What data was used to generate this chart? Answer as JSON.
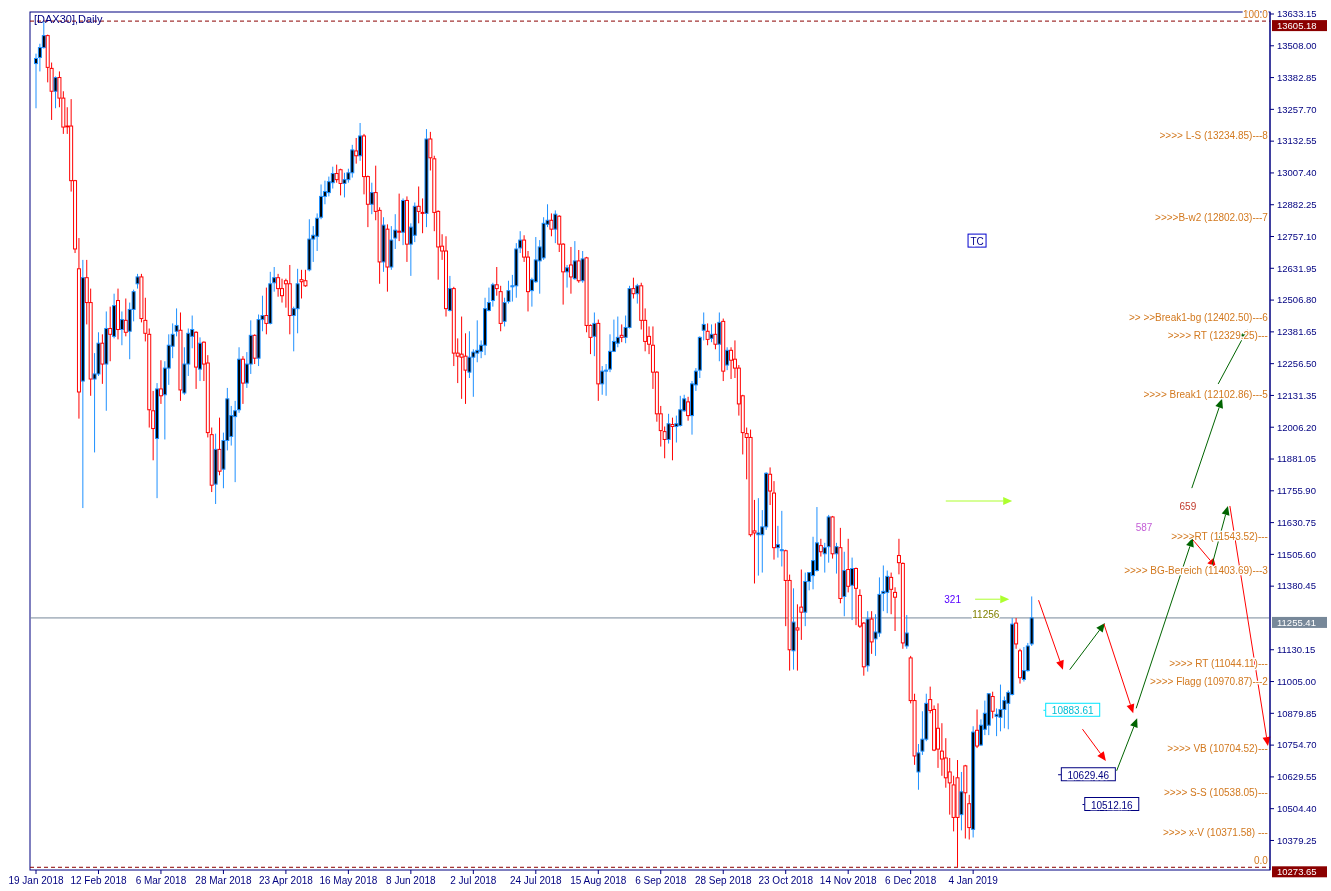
{
  "chart_data": {
    "type": "candlestick",
    "title": "[DAX30],Daily",
    "categories": [
      "19 Jan 2018",
      null,
      null,
      null,
      null,
      null,
      null,
      null,
      null,
      null,
      null,
      null,
      null,
      null,
      null,
      null,
      "12 Feb 2018",
      null,
      null,
      null,
      null,
      null,
      null,
      null,
      null,
      null,
      null,
      null,
      null,
      null,
      null,
      null,
      "6 Mar 2018",
      null,
      null,
      null,
      null,
      null,
      null,
      null,
      null,
      null,
      null,
      null,
      null,
      null,
      null,
      null,
      "28 Mar 2018",
      null,
      null,
      null,
      null,
      null,
      null,
      null,
      null,
      null,
      null,
      null,
      null,
      null,
      null,
      null,
      "23 Apr 2018",
      null,
      null,
      null,
      null,
      null,
      null,
      null,
      null,
      null,
      null,
      null,
      null,
      null,
      null,
      null,
      "16 May 2018",
      null,
      null,
      null,
      null,
      null,
      null,
      null,
      null,
      null,
      null,
      null,
      null,
      null,
      null,
      null,
      "8 Jun 2018",
      null,
      null,
      null,
      null,
      null,
      null,
      null,
      null,
      null,
      null,
      null,
      null,
      null,
      null,
      null,
      "2 Jul 2018",
      null,
      null,
      null,
      null,
      null,
      null,
      null,
      null,
      null,
      null,
      null,
      null,
      null,
      null,
      null,
      "24 Jul 2018",
      null,
      null,
      null,
      null,
      null,
      null,
      null,
      null,
      null,
      null,
      null,
      null,
      null,
      null,
      null,
      "15 Aug 2018",
      null,
      null,
      null,
      null,
      null,
      null,
      null,
      null,
      null,
      null,
      null,
      null,
      null,
      null,
      null,
      "6 Sep 2018",
      null,
      null,
      null,
      null,
      null,
      null,
      null,
      null,
      null,
      null,
      null,
      null,
      null,
      null,
      null,
      "28 Sep 2018",
      null,
      null,
      null,
      null,
      null,
      null,
      null,
      null,
      null,
      null,
      null,
      null,
      null,
      null,
      null,
      "23 Oct 2018",
      null,
      null,
      null,
      null,
      null,
      null,
      null,
      null,
      null,
      null,
      null,
      null,
      null,
      null,
      null,
      "14 Nov 2018",
      null,
      null,
      null,
      null,
      null,
      null,
      null,
      null,
      null,
      null,
      null,
      null,
      null,
      null,
      null,
      "6 Dec 2018",
      null,
      null,
      null,
      null,
      null,
      null,
      null,
      null,
      null,
      null,
      null,
      null,
      null,
      null,
      null,
      "4 Jan 2019",
      null,
      null,
      null,
      null,
      null,
      null,
      null,
      null,
      null,
      null,
      null,
      null,
      null,
      null,
      null,
      null,
      null,
      null,
      null,
      null,
      null,
      null,
      null,
      null,
      null,
      null,
      null,
      null,
      null,
      null,
      null,
      null,
      null,
      null,
      null,
      null,
      null,
      null,
      null,
      null,
      null,
      null,
      null,
      null,
      null,
      null,
      null,
      null,
      null,
      null,
      null,
      null,
      null,
      null,
      null,
      null,
      null,
      null,
      null,
      null,
      null,
      null,
      null,
      null,
      null,
      null,
      null,
      null,
      null,
      null,
      null,
      null,
      null,
      null,
      null
    ],
    "ohlc": [
      [
        13438,
        13477,
        13262,
        13458
      ],
      [
        13462,
        13516,
        13407,
        13501
      ],
      [
        13501,
        13605.18,
        13497,
        13548
      ],
      [
        13548,
        13552,
        13364,
        13423
      ],
      [
        13419,
        13442,
        13216,
        13329
      ],
      [
        13329,
        13387,
        13262,
        13383
      ],
      [
        13383,
        13407,
        13266,
        13302
      ],
      [
        13302,
        13329,
        13161,
        13188
      ],
      [
        13192,
        13266,
        13161,
        13190
      ],
      [
        13192,
        13298,
        12934,
        12977
      ],
      [
        12977,
        12980,
        12692,
        12708
      ],
      [
        12630,
        12751,
        12040,
        12145
      ],
      [
        12188,
        12665,
        11688,
        12595
      ],
      [
        12595,
        12665,
        12411,
        12497
      ],
      [
        12497,
        12552,
        12130,
        12196
      ],
      [
        12196,
        12298,
        11907,
        12216
      ],
      [
        12216,
        12380,
        12208,
        12337
      ],
      [
        12337,
        12372,
        12177,
        12255
      ],
      [
        12255,
        12462,
        12071,
        12395
      ],
      [
        12395,
        12481,
        12266,
        12372
      ],
      [
        12364,
        12532,
        12356,
        12485
      ],
      [
        12505,
        12552,
        12352,
        12391
      ],
      [
        12391,
        12462,
        12329,
        12430
      ],
      [
        12427,
        12513,
        12364,
        12380
      ],
      [
        12384,
        12497,
        12274,
        12470
      ],
      [
        12470,
        12548,
        12423,
        12540
      ],
      [
        12571,
        12610,
        12552,
        12598
      ],
      [
        12598,
        12610,
        12419,
        12434
      ],
      [
        12427,
        12516,
        12344,
        12376
      ],
      [
        12372,
        12395,
        12005,
        12075
      ],
      [
        12071,
        12149,
        11876,
        12001
      ],
      [
        11962,
        12180,
        11727,
        12157
      ],
      [
        12157,
        12270,
        12098,
        12130
      ],
      [
        12134,
        12266,
        11958,
        12239
      ],
      [
        12239,
        12372,
        12173,
        12329
      ],
      [
        12325,
        12415,
        12278,
        12372
      ],
      [
        12384,
        12474,
        12364,
        12407
      ],
      [
        12388,
        12458,
        12110,
        12153
      ],
      [
        12141,
        12321,
        12134,
        12255
      ],
      [
        12255,
        12395,
        12208,
        12376
      ],
      [
        12364,
        12446,
        12317,
        12391
      ],
      [
        12380,
        12384,
        12157,
        12243
      ],
      [
        12235,
        12360,
        12188,
        12337
      ],
      [
        12341,
        12344,
        12188,
        12255
      ],
      [
        12259,
        12290,
        11966,
        11985
      ],
      [
        11977,
        12005,
        11751,
        11778
      ],
      [
        11782,
        11981,
        11704,
        11919
      ],
      [
        11919,
        12044,
        11817,
        11833
      ],
      [
        11841,
        11985,
        11766,
        11954
      ],
      [
        11954,
        12161,
        11915,
        12118
      ],
      [
        11970,
        12090,
        11934,
        12052
      ],
      [
        12048,
        12110,
        11790,
        12071
      ],
      [
        12075,
        12321,
        12063,
        12274
      ],
      [
        12274,
        12286,
        12098,
        12180
      ],
      [
        12180,
        12302,
        12161,
        12255
      ],
      [
        12255,
        12427,
        12216,
        12368
      ],
      [
        12368,
        12372,
        12255,
        12278
      ],
      [
        12278,
        12450,
        12247,
        12430
      ],
      [
        12430,
        12524,
        12384,
        12446
      ],
      [
        12446,
        12556,
        12372,
        12415
      ],
      [
        12415,
        12618,
        12411,
        12571
      ],
      [
        12575,
        12637,
        12540,
        12595
      ],
      [
        12595,
        12610,
        12520,
        12552
      ],
      [
        12552,
        12591,
        12497,
        12524
      ],
      [
        12583,
        12591,
        12477,
        12571
      ],
      [
        12571,
        12645,
        12372,
        12446
      ],
      [
        12446,
        12481,
        12305,
        12473
      ],
      [
        12473,
        12630,
        12376,
        12571
      ],
      [
        12587,
        12626,
        12513,
        12579
      ],
      [
        12583,
        12626,
        12559,
        12563
      ],
      [
        12626,
        12825,
        12620,
        12747
      ],
      [
        12747,
        12798,
        12657,
        12762
      ],
      [
        12758,
        12848,
        12700,
        12829
      ],
      [
        12833,
        12962,
        12825,
        12915
      ],
      [
        12915,
        12977,
        12884,
        12934
      ],
      [
        12930,
        12993,
        12915,
        12973
      ],
      [
        12969,
        13032,
        12946,
        13005
      ],
      [
        13005,
        13040,
        12969,
        12981
      ],
      [
        13020,
        13024,
        12919,
        12966
      ],
      [
        12966,
        13008,
        12911,
        12981
      ],
      [
        12981,
        13024,
        12969,
        13008
      ],
      [
        13008,
        13118,
        12989,
        13098
      ],
      [
        13094,
        13145,
        13044,
        13075
      ],
      [
        13075,
        13204,
        13055,
        13153
      ],
      [
        13153,
        13161,
        12923,
        12993
      ],
      [
        12993,
        12997,
        12794,
        12884
      ],
      [
        12884,
        12969,
        12845,
        12930
      ],
      [
        12930,
        13036,
        12821,
        12856
      ],
      [
        12860,
        12872,
        12571,
        12657
      ],
      [
        12657,
        12833,
        12618,
        12802
      ],
      [
        12786,
        12805,
        12540,
        12637
      ],
      [
        12637,
        12798,
        12626,
        12743
      ],
      [
        12751,
        12845,
        12708,
        12782
      ],
      [
        12778,
        12926,
        12739,
        12774
      ],
      [
        12774,
        12907,
        12723,
        12899
      ],
      [
        12899,
        12915,
        12657,
        12727
      ],
      [
        12727,
        12809,
        12602,
        12794
      ],
      [
        12762,
        12891,
        12735,
        12876
      ],
      [
        12876,
        12954,
        12809,
        12856
      ],
      [
        12852,
        12907,
        12770,
        12848
      ],
      [
        12848,
        13180,
        12794,
        13141
      ],
      [
        13141,
        13169,
        13017,
        13067
      ],
      [
        13063,
        13075,
        12778,
        12852
      ],
      [
        12856,
        12860,
        12587,
        12716
      ],
      [
        12719,
        12766,
        12665,
        12700
      ],
      [
        12700,
        12758,
        12442,
        12473
      ],
      [
        12466,
        12602,
        12462,
        12552
      ],
      [
        12552,
        12559,
        12247,
        12298
      ],
      [
        12298,
        12356,
        12180,
        12286
      ],
      [
        12294,
        12442,
        12118,
        12282
      ],
      [
        12286,
        12376,
        12098,
        12231
      ],
      [
        12223,
        12384,
        12200,
        12282
      ],
      [
        12282,
        12313,
        12126,
        12302
      ],
      [
        12298,
        12427,
        12262,
        12309
      ],
      [
        12305,
        12348,
        12278,
        12329
      ],
      [
        12329,
        12516,
        12290,
        12473
      ],
      [
        12466,
        12556,
        12462,
        12497
      ],
      [
        12505,
        12575,
        12481,
        12567
      ],
      [
        12567,
        12637,
        12524,
        12552
      ],
      [
        12540,
        12563,
        12384,
        12415
      ],
      [
        12423,
        12516,
        12403,
        12497
      ],
      [
        12501,
        12583,
        12493,
        12544
      ],
      [
        12559,
        12606,
        12501,
        12563
      ],
      [
        12563,
        12731,
        12516,
        12708
      ],
      [
        12712,
        12778,
        12692,
        12743
      ],
      [
        12743,
        12762,
        12657,
        12676
      ],
      [
        12676,
        12700,
        12462,
        12540
      ],
      [
        12544,
        12595,
        12481,
        12587
      ],
      [
        12579,
        12755,
        12575,
        12665
      ],
      [
        12661,
        12743,
        12532,
        12716
      ],
      [
        12673,
        12833,
        12665,
        12809
      ],
      [
        12805,
        12884,
        12794,
        12821
      ],
      [
        12821,
        12848,
        12758,
        12786
      ],
      [
        12786,
        12860,
        12731,
        12845
      ],
      [
        12837,
        12841,
        12696,
        12727
      ],
      [
        12727,
        12731,
        12489,
        12618
      ],
      [
        12618,
        12645,
        12556,
        12634
      ],
      [
        12645,
        12716,
        12532,
        12598
      ],
      [
        12591,
        12739,
        12587,
        12661
      ],
      [
        12661,
        12704,
        12575,
        12583
      ],
      [
        12583,
        12700,
        12575,
        12669
      ],
      [
        12673,
        12677,
        12380,
        12407
      ],
      [
        12407,
        12411,
        12294,
        12360
      ],
      [
        12364,
        12458,
        12286,
        12415
      ],
      [
        12415,
        12430,
        12110,
        12177
      ],
      [
        12177,
        12247,
        12134,
        12227
      ],
      [
        12227,
        12255,
        12130,
        12231
      ],
      [
        12235,
        12372,
        12223,
        12305
      ],
      [
        12305,
        12430,
        12302,
        12344
      ],
      [
        12337,
        12442,
        12321,
        12360
      ],
      [
        12368,
        12411,
        12341,
        12360
      ],
      [
        12360,
        12446,
        12337,
        12399
      ],
      [
        12399,
        12563,
        12395,
        12552
      ],
      [
        12552,
        12595,
        12513,
        12532
      ],
      [
        12532,
        12571,
        12493,
        12563
      ],
      [
        12563,
        12575,
        12391,
        12427
      ],
      [
        12427,
        12474,
        12305,
        12344
      ],
      [
        12364,
        12403,
        12294,
        12333
      ],
      [
        12329,
        12403,
        12157,
        12223
      ],
      [
        12223,
        12227,
        12028,
        12059
      ],
      [
        12059,
        12090,
        11930,
        11993
      ],
      [
        11989,
        12009,
        11884,
        11958
      ],
      [
        11958,
        12059,
        11942,
        12020
      ],
      [
        12017,
        12044,
        11876,
        12009
      ],
      [
        12009,
        12052,
        11946,
        12020
      ],
      [
        12013,
        12130,
        12009,
        12075
      ],
      [
        12071,
        12134,
        12067,
        12118
      ],
      [
        12106,
        12126,
        12032,
        12052
      ],
      [
        12052,
        12188,
        11977,
        12177
      ],
      [
        12173,
        12239,
        12149,
        12227
      ],
      [
        12231,
        12364,
        12200,
        12360
      ],
      [
        12388,
        12458,
        12348,
        12411
      ],
      [
        12384,
        12415,
        12329,
        12352
      ],
      [
        12356,
        12411,
        12341,
        12372
      ],
      [
        12372,
        12415,
        12313,
        12333
      ],
      [
        12333,
        12458,
        12266,
        12419
      ],
      [
        12423,
        12434,
        12188,
        12227
      ],
      [
        12251,
        12321,
        12231,
        12309
      ],
      [
        12309,
        12321,
        12196,
        12270
      ],
      [
        12274,
        12348,
        12200,
        12239
      ],
      [
        12239,
        12251,
        12052,
        12098
      ],
      [
        12130,
        12134,
        11899,
        11985
      ],
      [
        11981,
        12005,
        11801,
        11966
      ],
      [
        11966,
        11997,
        11575,
        11583
      ],
      [
        11598,
        11720,
        11391,
        11590
      ],
      [
        11583,
        11727,
        11422,
        11590
      ],
      [
        11583,
        11680,
        11434,
        11614
      ],
      [
        11614,
        11829,
        11602,
        11825
      ],
      [
        11821,
        11848,
        11700,
        11755
      ],
      [
        11747,
        11794,
        11485,
        11532
      ],
      [
        11532,
        11618,
        11493,
        11544
      ],
      [
        11520,
        11677,
        11458,
        11524
      ],
      [
        11520,
        11524,
        11223,
        11403
      ],
      [
        11403,
        11426,
        11048,
        11130
      ],
      [
        11126,
        11372,
        11052,
        11239
      ],
      [
        11216,
        11309,
        11048,
        11208
      ],
      [
        11298,
        11446,
        11169,
        11278
      ],
      [
        11278,
        11434,
        11223,
        11399
      ],
      [
        11399,
        11434,
        11364,
        11434
      ],
      [
        11422,
        11575,
        11368,
        11481
      ],
      [
        11442,
        11692,
        11438,
        11551
      ],
      [
        11540,
        11567,
        11497,
        11516
      ],
      [
        11508,
        11551,
        11434,
        11532
      ],
      [
        11536,
        11661,
        11473,
        11653
      ],
      [
        11653,
        11657,
        11489,
        11508
      ],
      [
        11508,
        11551,
        11430,
        11536
      ],
      [
        11532,
        11610,
        11313,
        11332
      ],
      [
        11340,
        11516,
        11262,
        11442
      ],
      [
        11446,
        11567,
        11356,
        11380
      ],
      [
        11384,
        11493,
        11247,
        11450
      ],
      [
        11450,
        11454,
        11227,
        11372
      ],
      [
        11344,
        11368,
        11216,
        11223
      ],
      [
        11235,
        11239,
        11028,
        11063
      ],
      [
        11067,
        11282,
        11044,
        11251
      ],
      [
        11251,
        11282,
        11114,
        11161
      ],
      [
        11173,
        11270,
        11106,
        11200
      ],
      [
        11196,
        11415,
        11181,
        11348
      ],
      [
        11352,
        11462,
        11282,
        11360
      ],
      [
        11356,
        11442,
        11274,
        11419
      ],
      [
        11415,
        11434,
        11270,
        11368
      ],
      [
        11356,
        11376,
        11204,
        11337
      ],
      [
        11501,
        11567,
        11427,
        11473
      ],
      [
        11470,
        11474,
        11134,
        11157
      ],
      [
        11145,
        11267,
        11134,
        11196
      ],
      [
        11098,
        11106,
        10919,
        10930
      ],
      [
        10930,
        10957,
        10677,
        10712
      ],
      [
        10649,
        10759,
        10579,
        10724
      ],
      [
        10731,
        10888,
        10716,
        10778
      ],
      [
        10778,
        10957,
        10770,
        10919
      ],
      [
        10934,
        10985,
        10880,
        10891
      ],
      [
        10895,
        10911,
        10731,
        10735
      ],
      [
        10821,
        10919,
        10665,
        10739
      ],
      [
        10731,
        10841,
        10634,
        10700
      ],
      [
        10704,
        10782,
        10587,
        10626
      ],
      [
        10649,
        10704,
        10481,
        10606
      ],
      [
        10598,
        10634,
        10415,
        10470
      ],
      [
        10626,
        10696,
        10273.65,
        10470
      ],
      [
        10481,
        10649,
        10419,
        10571
      ],
      [
        10673,
        10677,
        10387,
        10567
      ],
      [
        10524,
        10559,
        10383,
        10430
      ],
      [
        10423,
        10829,
        10391,
        10806
      ],
      [
        10813,
        10895,
        10743,
        10751
      ],
      [
        10755,
        10856,
        10751,
        10833
      ],
      [
        10817,
        10930,
        10794,
        10880
      ],
      [
        10833,
        10957,
        10794,
        10957
      ],
      [
        10946,
        10965,
        10860,
        10888
      ],
      [
        10868,
        10899,
        10790,
        10876
      ],
      [
        10864,
        10993,
        10809,
        10895
      ],
      [
        10895,
        10946,
        10821,
        10930
      ],
      [
        10919,
        10970,
        10817,
        10962
      ],
      [
        10954,
        11255,
        10950,
        11231
      ],
      [
        11235,
        11255,
        11134,
        11153
      ],
      [
        11126,
        11134,
        10997,
        11020
      ],
      [
        11013,
        11141,
        11005,
        11048
      ],
      [
        11048,
        11157,
        11044,
        11145
      ],
      [
        11153,
        11340,
        11145,
        11255.41
      ],
      null,
      null,
      null,
      null,
      null,
      null,
      null,
      null,
      null,
      null,
      null,
      null,
      null,
      null,
      null,
      null,
      null,
      null,
      null,
      null,
      null,
      null,
      null,
      null,
      null,
      null,
      null,
      null,
      null,
      null,
      null,
      null,
      null,
      null,
      null,
      null,
      null,
      null,
      null,
      null,
      null,
      null,
      null,
      null,
      null,
      null,
      null,
      null,
      null,
      null,
      null,
      null,
      null,
      null,
      null,
      null,
      null,
      null,
      null,
      null
    ],
    "ylim": [
      10263,
      13641
    ],
    "yticks": [
      13633.15,
      {
        "value": 13508,
        "label": "13508.00"
      },
      13382.85,
      {
        "value": 13257.7,
        "label": "13257.70"
      },
      13132.55,
      {
        "value": 13007.4,
        "label": "13007.40"
      },
      12882.25,
      {
        "value": 12757.1,
        "label": "12757.10"
      },
      12631.95,
      {
        "value": 12506.8,
        "label": "12506.80"
      },
      12381.65,
      {
        "value": 12256.5,
        "label": "12256.50"
      },
      12131.35,
      {
        "value": 12006.2,
        "label": "12006.20"
      },
      11881.05,
      {
        "value": 11755.9,
        "label": "11755.90"
      },
      11630.75,
      {
        "value": 11505.6,
        "label": "11505.60"
      },
      11380.45,
      11130.15,
      {
        "value": 11005,
        "label": "11005.00"
      },
      10879.85,
      {
        "value": 10754.7,
        "label": "10754.70"
      },
      10629.55,
      {
        "value": 10504.4,
        "label": "10504.40"
      },
      10379.25
    ],
    "ref_lines": [
      {
        "axis": "y",
        "value": 13605.18,
        "label": "13605.18",
        "color": "#8b0000",
        "line_style": "dashed"
      },
      {
        "axis": "y",
        "value": 10273.65,
        "label": "10273.65",
        "color": "#8b0000",
        "line_style": "dashed"
      },
      {
        "axis": "y",
        "value": 11255.41,
        "label": "11255.41",
        "color": "#778899",
        "line_style": "solid"
      }
    ],
    "annotations": [
      {
        "text": "100.0",
        "y": 13605.18
      },
      {
        "text": "0.0",
        "y": 10273.65
      },
      ">>>> L-S (13234.85)---8",
      ">>>>B-w2 (12802.03)---7",
      ">> >>Break1-bg (12402.50)---6",
      ">>>> RT (12329.25)---",
      ">>>> Break1 (12102.86)---5",
      ">>>>RT (11543.52)---",
      ">>>> BG-Bereich (11403.69)---3",
      ">>>> RT (11044.11)---",
      ">>>> Flagg (10970.87)---2",
      ">>>> VB (10704.52)---",
      ">>>> S-S (10538.05)---",
      ">>>> x-V (10371.58) ---",
      "TC",
      "321",
      {
        "text": "11256",
        "y": 11256
      },
      "587",
      "659",
      "10883.61",
      "10629.46",
      "10512.16"
    ]
  }
}
